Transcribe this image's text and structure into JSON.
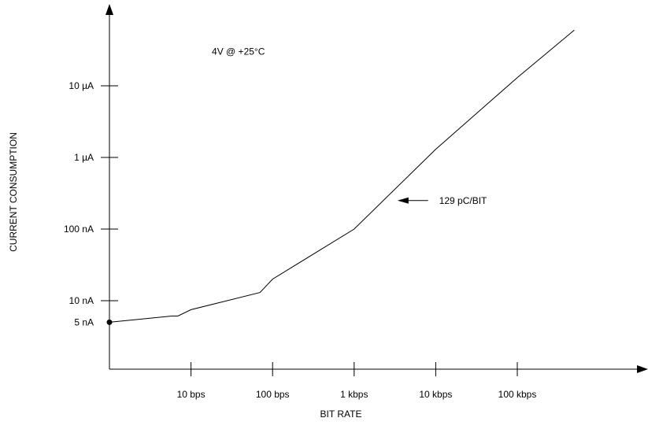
{
  "chart_data": {
    "type": "line",
    "title": "",
    "xlabel": "BIT RATE",
    "ylabel": "CURRENT CONSUMPTION",
    "x_scale": "log",
    "y_scale": "log",
    "x_unit": "bps",
    "y_unit": "nA",
    "xlim": [
      1,
      1000000
    ],
    "ylim": [
      2.2,
      1000000
    ],
    "x_ticks": [
      {
        "value": 10,
        "label": "10 bps"
      },
      {
        "value": 100,
        "label": "100 bps"
      },
      {
        "value": 1000,
        "label": "1 kbps"
      },
      {
        "value": 10000,
        "label": "10 kbps"
      },
      {
        "value": 100000,
        "label": "100 kbps"
      }
    ],
    "y_ticks": [
      {
        "value": 5,
        "label": "5 nA"
      },
      {
        "value": 10,
        "label": "10 nA"
      },
      {
        "value": 100,
        "label": "100 nA"
      },
      {
        "value": 1000,
        "label": "1 µA"
      },
      {
        "value": 10000,
        "label": "10 µA"
      }
    ],
    "grid": false,
    "series": [
      {
        "x": [
          1,
          5.8,
          6.9,
          10,
          70,
          100,
          1000,
          10000,
          100000,
          500000
        ],
        "y": [
          5,
          6.1,
          6.1,
          7.5,
          13,
          20,
          100,
          1300,
          13000,
          60000
        ]
      }
    ],
    "start_marker": {
      "x": 1,
      "y": 5
    },
    "annotations": [
      {
        "text": "4V @ +25°C",
        "x": 18,
        "y": 30000
      },
      {
        "text": "129 pC/BIT",
        "x": 11000,
        "y": 250,
        "arrow_to_x": 3400
      }
    ]
  }
}
